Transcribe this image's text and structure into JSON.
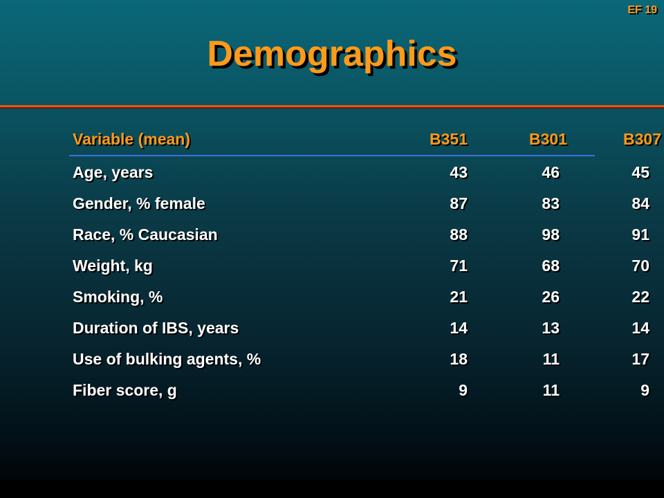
{
  "slide": {
    "id_label": "EF 19",
    "title": "Demographics"
  },
  "table": {
    "headers": [
      "Variable (mean)",
      "B351",
      "B301",
      "B307"
    ],
    "rows": [
      [
        "Age, years",
        "43",
        "46",
        "45"
      ],
      [
        "Gender, % female",
        "87",
        "83",
        "84"
      ],
      [
        "Race, % Caucasian",
        "88",
        "98",
        "91"
      ],
      [
        "Weight, kg",
        "71",
        "68",
        "70"
      ],
      [
        "Smoking, %",
        "21",
        "26",
        "22"
      ],
      [
        "Duration of IBS, years",
        "14",
        "13",
        "14"
      ],
      [
        "Use of bulking agents, %",
        "18",
        "11",
        "17"
      ],
      [
        "Fiber score, g",
        "9",
        "11",
        "9"
      ]
    ]
  },
  "colors": {
    "accent_orange": "#ff9a1a",
    "rule_red": "#e9521b",
    "header_rule_blue": "#3c6ee0",
    "text_white": "#ffffff"
  }
}
